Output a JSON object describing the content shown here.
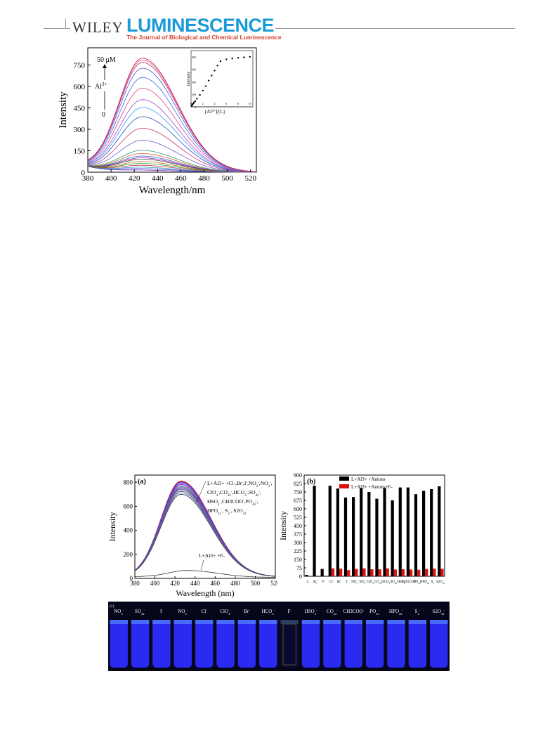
{
  "header": {
    "publisher": "WILEY",
    "journal": "LUMINESCENCE",
    "subtitle": "The Journal of Biological and Chemical Luminescence",
    "colors": {
      "journal": "#1a9ad6",
      "subtitle": "#d6402b"
    }
  },
  "figure1": {
    "chart_data": {
      "type": "line",
      "xlabel": "Wavelength/nm",
      "ylabel": "Intensity",
      "xlim": [
        380,
        525
      ],
      "ylim": [
        0,
        870
      ],
      "xticks": [
        "380",
        "400",
        "420",
        "440",
        "460",
        "480",
        "500",
        "520"
      ],
      "yticks": [
        "0",
        "150",
        "300",
        "450",
        "600",
        "750"
      ],
      "annotations": {
        "conc_top": "50 μM",
        "ion": "Al",
        "ion_charge": "3+",
        "conc_bottom": "0"
      },
      "peak_wavelength": 427,
      "series_peaks": [
        12,
        22,
        32,
        45,
        58,
        72,
        88,
        98,
        110,
        128,
        150,
        220,
        305,
        385,
        450,
        505,
        585,
        660,
        725,
        765,
        782,
        795
      ],
      "inset": {
        "ylabel": "Intensity",
        "xlabel": "[Al3+]/[L]",
        "xticks": [
          "0",
          "2",
          "4",
          "6",
          "8",
          "10"
        ],
        "yticks": [
          "0",
          "200",
          "400",
          "600",
          "800"
        ],
        "points": [
          [
            0.1,
            15
          ],
          [
            0.2,
            30
          ],
          [
            0.3,
            45
          ],
          [
            0.4,
            55
          ],
          [
            0.5,
            70
          ],
          [
            0.7,
            90
          ],
          [
            1.0,
            130
          ],
          [
            1.5,
            190
          ],
          [
            2.0,
            260
          ],
          [
            2.5,
            330
          ],
          [
            3.0,
            420
          ],
          [
            3.5,
            500
          ],
          [
            4.0,
            580
          ],
          [
            4.5,
            660
          ],
          [
            5.0,
            730
          ],
          [
            6.0,
            760
          ],
          [
            7.0,
            775
          ],
          [
            8.0,
            785
          ],
          [
            9.0,
            792
          ],
          [
            10.0,
            800
          ]
        ]
      }
    }
  },
  "figure2a": {
    "chart_data": {
      "type": "line",
      "panel_label": "(a)",
      "xlabel": "Wavelength (nm)",
      "ylabel": "Intensity",
      "xlim": [
        380,
        520
      ],
      "ylim": [
        0,
        860
      ],
      "xticks": [
        "380",
        "400",
        "420",
        "440",
        "460",
        "480",
        "500",
        "520"
      ],
      "yticks": [
        "0",
        "200",
        "400",
        "600",
        "800"
      ],
      "legend_lines": [
        "L+Al3+ +Cl-,Br-,I-,NO2-,NO3-,",
        "ClO4-,CO32-,HCO3-,SO42-,",
        "HSO4-,CH3COO-,PO43-,",
        "HPO42-, S2-, S2O32-"
      ],
      "low_label": "L+Al3+ +F-",
      "series_peaks": [
        800,
        795,
        790,
        785,
        778,
        770,
        760,
        752,
        745,
        738,
        730,
        722,
        712,
        700,
        688
      ],
      "low_peak": 68
    }
  },
  "figure2b": {
    "chart_data": {
      "type": "bar",
      "panel_label": "(b)",
      "ylabel": "Intensity",
      "ylim": [
        0,
        900
      ],
      "yticks": [
        "0",
        "75",
        "150",
        "225",
        "300",
        "375",
        "450",
        "525",
        "600",
        "675",
        "750",
        "825",
        "900"
      ],
      "legend": [
        "L+Al3+ +Anions",
        "L+Al3+ +Anions+F-"
      ],
      "colors": {
        "black": "#000000",
        "red": "#e01010"
      },
      "categories": [
        "L",
        "Al3+",
        "F-",
        "Cl-",
        "Br-",
        "I-",
        "NO2-",
        "NO3-",
        "ClO4-",
        "CO32-",
        "HCO3-",
        "SO42-",
        "HSO4-",
        "CH3COO-",
        "PO43-",
        "HPO42-",
        "S2-",
        "S2O32-"
      ],
      "series": [
        {
          "name": "L+Al3+ +Anions",
          "values": [
            12,
            805,
            65,
            805,
            780,
            700,
            705,
            785,
            750,
            690,
            785,
            675,
            790,
            790,
            730,
            760,
            775,
            800
          ]
        },
        {
          "name": "L+Al3+ +Anions+F-",
          "values": [
            null,
            null,
            null,
            70,
            68,
            55,
            65,
            70,
            62,
            62,
            70,
            60,
            62,
            60,
            58,
            65,
            68,
            66
          ]
        }
      ]
    }
  },
  "figure2c": {
    "panel_label": "(c)",
    "vial_labels": [
      "NO3-",
      "SO42-",
      "I-",
      "NO2-",
      "Cl-",
      "ClO4-",
      "Br-",
      "HCO3-",
      "F-",
      "HSO4-",
      "CO32-",
      "CH3COO-",
      "PO43-",
      "HPO42-",
      "S2-",
      "S2O32-"
    ],
    "vial_glow": [
      "blue",
      "blue",
      "blue",
      "blue",
      "blue",
      "blue",
      "blue",
      "blue",
      "dark",
      "blue",
      "blue",
      "blue",
      "blue",
      "blue",
      "blue",
      "blue"
    ]
  }
}
